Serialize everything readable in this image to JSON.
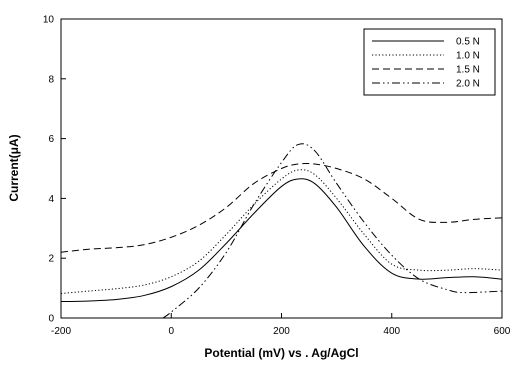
{
  "chart_data": {
    "type": "line",
    "xlabel": "Potential (mV) vs . Ag/AgCl",
    "ylabel": "Current(μA)",
    "xlim": [
      -200,
      600
    ],
    "ylim": [
      0,
      10
    ],
    "x_ticks": [
      -200,
      0,
      200,
      400,
      600
    ],
    "y_ticks": [
      0,
      2,
      4,
      6,
      8,
      10
    ],
    "x_tick_labels": [
      "-200",
      "0",
      "200",
      "400",
      "600"
    ],
    "y_tick_labels": [
      "0",
      "2",
      "4",
      "6",
      "8",
      "10"
    ],
    "grid": false,
    "legend_position": "top-right",
    "series": [
      {
        "name": "0.5 N",
        "style": "solid",
        "points": [
          [
            -200,
            0.55
          ],
          [
            -150,
            0.57
          ],
          [
            -100,
            0.62
          ],
          [
            -50,
            0.75
          ],
          [
            0,
            1.05
          ],
          [
            50,
            1.6
          ],
          [
            100,
            2.5
          ],
          [
            150,
            3.5
          ],
          [
            200,
            4.4
          ],
          [
            230,
            4.65
          ],
          [
            260,
            4.5
          ],
          [
            300,
            3.7
          ],
          [
            350,
            2.4
          ],
          [
            400,
            1.5
          ],
          [
            450,
            1.3
          ],
          [
            500,
            1.35
          ],
          [
            550,
            1.38
          ],
          [
            600,
            1.3
          ]
        ]
      },
      {
        "name": "1.0 N",
        "style": "dotted",
        "points": [
          [
            -200,
            0.82
          ],
          [
            -150,
            0.9
          ],
          [
            -100,
            0.98
          ],
          [
            -50,
            1.1
          ],
          [
            0,
            1.38
          ],
          [
            50,
            1.9
          ],
          [
            100,
            2.8
          ],
          [
            150,
            3.8
          ],
          [
            200,
            4.65
          ],
          [
            230,
            4.95
          ],
          [
            260,
            4.8
          ],
          [
            300,
            4.0
          ],
          [
            350,
            2.8
          ],
          [
            400,
            1.8
          ],
          [
            450,
            1.6
          ],
          [
            500,
            1.6
          ],
          [
            550,
            1.65
          ],
          [
            600,
            1.6
          ]
        ]
      },
      {
        "name": "1.5 N",
        "style": "dashed",
        "points": [
          [
            -200,
            2.2
          ],
          [
            -150,
            2.3
          ],
          [
            -100,
            2.35
          ],
          [
            -50,
            2.45
          ],
          [
            0,
            2.7
          ],
          [
            50,
            3.1
          ],
          [
            100,
            3.7
          ],
          [
            150,
            4.5
          ],
          [
            200,
            5.0
          ],
          [
            230,
            5.15
          ],
          [
            260,
            5.15
          ],
          [
            300,
            5.0
          ],
          [
            350,
            4.65
          ],
          [
            400,
            4.0
          ],
          [
            450,
            3.3
          ],
          [
            500,
            3.2
          ],
          [
            550,
            3.3
          ],
          [
            600,
            3.35
          ]
        ]
      },
      {
        "name": "2.0 N",
        "style": "dash-dot-dot",
        "points": [
          [
            -15,
            0.0
          ],
          [
            0,
            0.2
          ],
          [
            50,
            1.0
          ],
          [
            100,
            2.2
          ],
          [
            150,
            3.8
          ],
          [
            200,
            5.2
          ],
          [
            230,
            5.8
          ],
          [
            260,
            5.6
          ],
          [
            300,
            4.5
          ],
          [
            350,
            3.2
          ],
          [
            400,
            2.1
          ],
          [
            450,
            1.3
          ],
          [
            500,
            0.95
          ],
          [
            530,
            0.85
          ],
          [
            600,
            0.9
          ]
        ]
      }
    ]
  }
}
